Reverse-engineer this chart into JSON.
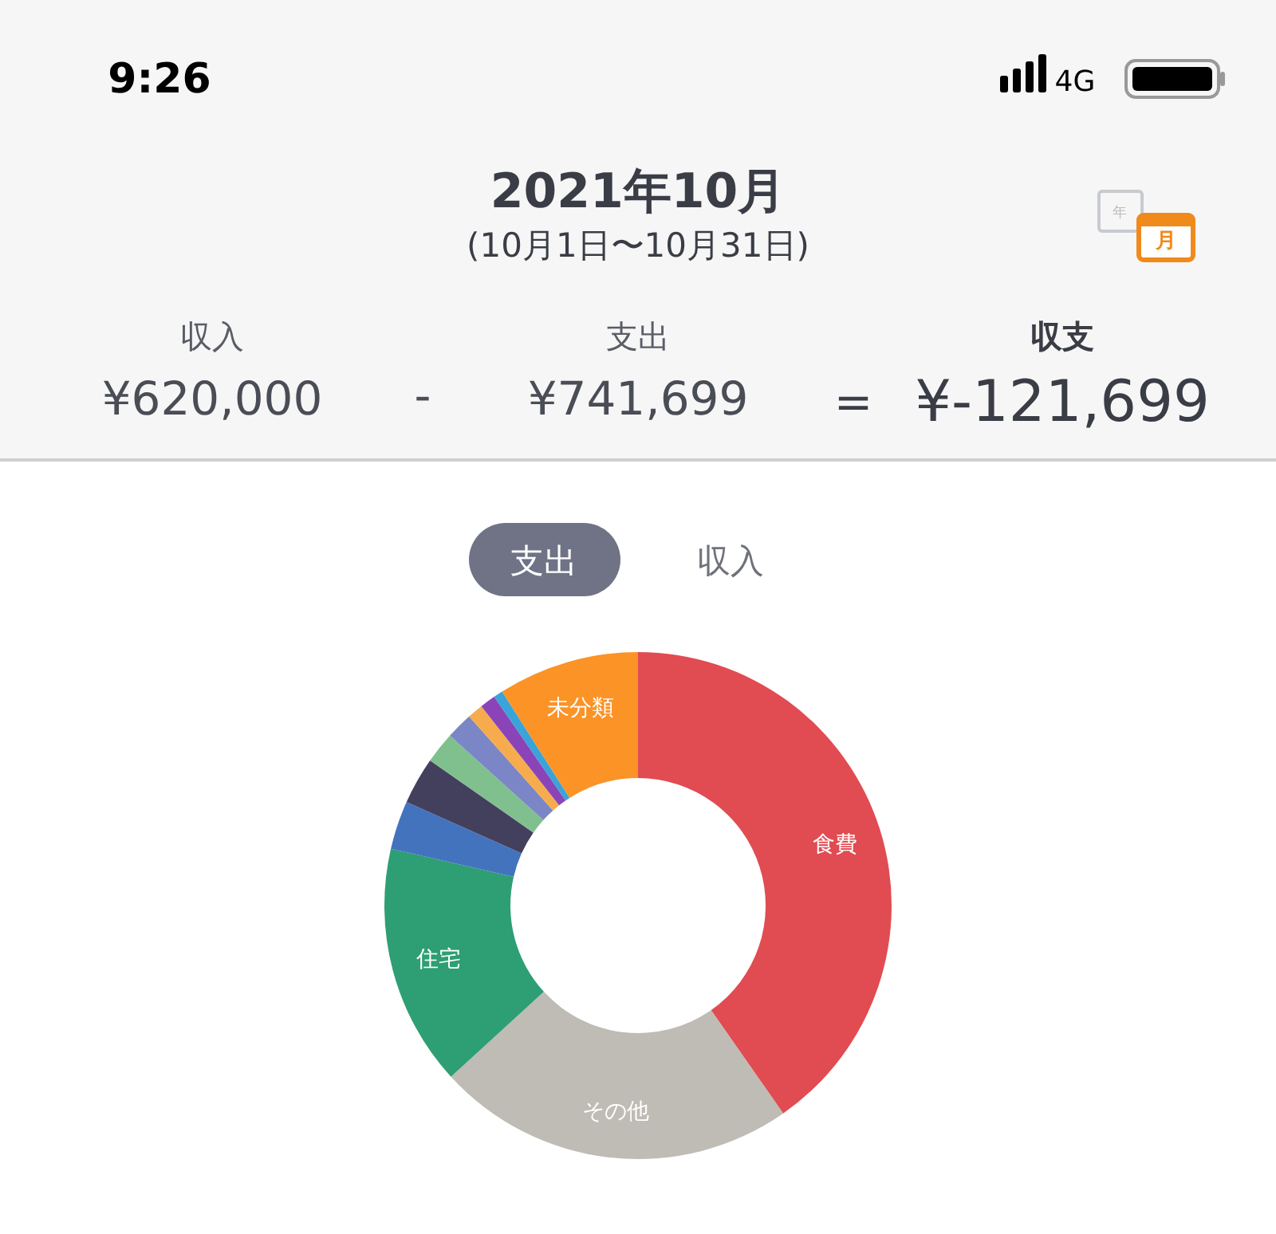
{
  "chart_data": {
    "type": "donut",
    "title": "2021年10月",
    "subtitle": "(10月1日〜10月31日)",
    "categories": [
      "食費",
      "その他",
      "住宅",
      null,
      null,
      null,
      null,
      null,
      null,
      null,
      "未分類"
    ],
    "values": [
      40.3,
      22.9,
      15.4,
      3.1,
      3.0,
      2.0,
      1.7,
      1.0,
      1.0,
      0.6,
      9.0
    ],
    "colors": [
      "#e04c52",
      "#bfbbb5",
      "#2e9e74",
      "#4473be",
      "#43405e",
      "#80c08e",
      "#7b86c6",
      "#f6ac4c",
      "#8a44b8",
      "#3aa3d8",
      "#fb9327"
    ],
    "annotations": [
      "9:26",
      "4G",
      "収入",
      "¥620,000",
      "-",
      "支出",
      "¥741,699",
      "=",
      "収支",
      "¥-121,699",
      "支出",
      "収入",
      "年",
      "月"
    ]
  }
}
